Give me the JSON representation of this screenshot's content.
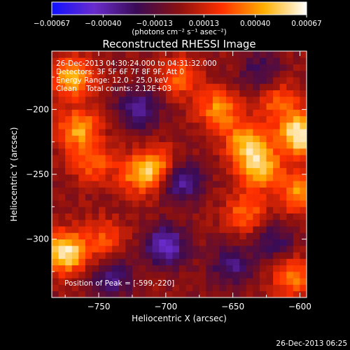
{
  "chart_data": {
    "type": "heatmap",
    "title": "Reconstructed RHESSI Image",
    "xlabel": "Heliocentric X (arcsec)",
    "ylabel": "Heliocentric Y (arcsec)",
    "xlim": [
      -785,
      -595
    ],
    "ylim": [
      -345,
      -155
    ],
    "xticks": [
      -750,
      -700,
      -650,
      -600
    ],
    "yticks": [
      -200,
      -250,
      -300
    ],
    "xtick_labels": [
      "−750",
      "−700",
      "−650",
      "−600"
    ],
    "ytick_labels": [
      "−200",
      "−250",
      "−300"
    ],
    "colorbar": {
      "min": -0.00067,
      "max": 0.00067,
      "tick_values": [
        -0.00067,
        -0.0004,
        -0.00013,
        0.00013,
        0.0004,
        0.00067
      ],
      "tick_labels": [
        "−0.00067",
        "−0.00040",
        "−0.00013",
        "0.00013",
        "0.00040",
        "0.00067"
      ],
      "unit_label": "(photons cm⁻² s⁻¹ asec⁻²)",
      "colors": [
        "#1010ff",
        "#6a2ccc",
        "#3a0b55",
        "#8a1010",
        "#ff3000",
        "#ffb000",
        "#ffffff"
      ]
    },
    "annotations": [
      "26-Dec-2013 04:30:24.000 to 04:31:32.000",
      "Detectors: 3F 5F 6F 7F 8F 9F, Att 0",
      "Energy Range: 12.0 - 25.0 keV",
      "Clean    Total counts: 2.12E+03"
    ],
    "peak_label": "Position of Peak = [-599,-220]",
    "peak": [
      -599,
      -220
    ],
    "sources": [
      {
        "x": -770,
        "y": -175,
        "v": 0.00045
      },
      {
        "x": -765,
        "y": -215,
        "v": 0.00042
      },
      {
        "x": -755,
        "y": -240,
        "v": 0.0003
      },
      {
        "x": -775,
        "y": -310,
        "v": 0.00062
      },
      {
        "x": -745,
        "y": -300,
        "v": 0.00025
      },
      {
        "x": -720,
        "y": -250,
        "v": 0.00035
      },
      {
        "x": -705,
        "y": -245,
        "v": 0.00038
      },
      {
        "x": -690,
        "y": -175,
        "v": 0.0003
      },
      {
        "x": -660,
        "y": -200,
        "v": 0.0004
      },
      {
        "x": -640,
        "y": -225,
        "v": 0.00045
      },
      {
        "x": -630,
        "y": -245,
        "v": 0.0005
      },
      {
        "x": -615,
        "y": -195,
        "v": 0.0003
      },
      {
        "x": -599,
        "y": -220,
        "v": 0.00067
      },
      {
        "x": -600,
        "y": -265,
        "v": 0.0004
      },
      {
        "x": -640,
        "y": -280,
        "v": 0.00032
      },
      {
        "x": -605,
        "y": -330,
        "v": 0.00035
      },
      {
        "x": -700,
        "y": -305,
        "v": -0.00045
      },
      {
        "x": -690,
        "y": -255,
        "v": -0.00042
      },
      {
        "x": -720,
        "y": -200,
        "v": -0.00035
      },
      {
        "x": -650,
        "y": -320,
        "v": -0.0003
      },
      {
        "x": -620,
        "y": -300,
        "v": -0.00025
      },
      {
        "x": -740,
        "y": -330,
        "v": -0.0003
      },
      {
        "x": -630,
        "y": -170,
        "v": -0.00022
      }
    ]
  },
  "footer": {
    "timestamp": "26-Dec-2013 06:25"
  }
}
